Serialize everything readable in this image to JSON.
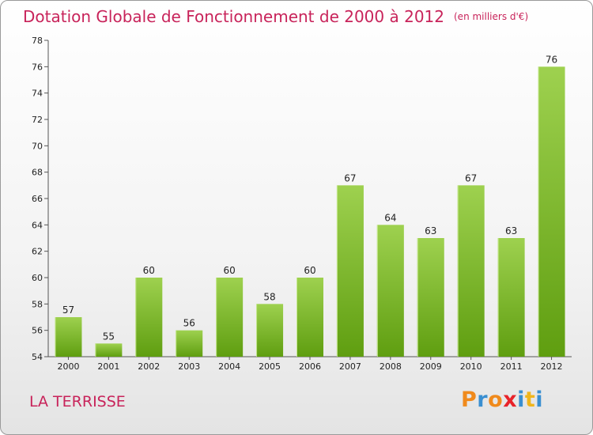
{
  "header": {
    "title": "Dotation Globale de Fonctionnement de 2000 à 2012",
    "subtitle": "(en milliers d'€)"
  },
  "commune": "LA TERRISSE",
  "logo": {
    "text": "Proxiti",
    "letter_colors": [
      "#f08a1c",
      "#3a8fd1",
      "#f08a1c",
      "#e8232a",
      "#3a8fd1",
      "#f0b51c",
      "#3a8fd1"
    ]
  },
  "colors": {
    "title": "#c8235a",
    "bar_top": "#9ed14f",
    "bar_bottom": "#5f9e10",
    "axis": "#555555"
  },
  "chart_data": {
    "type": "bar",
    "title": "Dotation Globale de Fonctionnement de 2000 à 2012",
    "subtitle": "(en milliers d'€)",
    "categories": [
      "2000",
      "2001",
      "2002",
      "2003",
      "2004",
      "2005",
      "2006",
      "2007",
      "2008",
      "2009",
      "2010",
      "2011",
      "2012"
    ],
    "values": [
      57,
      55,
      60,
      56,
      60,
      58,
      60,
      67,
      64,
      63,
      67,
      63,
      76
    ],
    "ylim": [
      54,
      78
    ],
    "yticks": [
      54,
      56,
      58,
      60,
      62,
      64,
      66,
      68,
      70,
      72,
      74,
      76,
      78
    ],
    "grid": false,
    "xlabel": "",
    "ylabel": ""
  }
}
